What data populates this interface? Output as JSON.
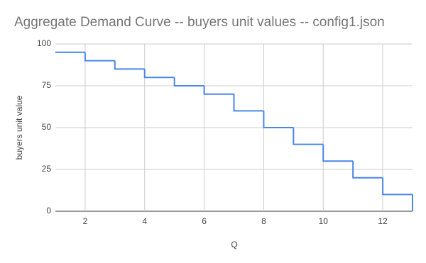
{
  "chart_data": {
    "type": "line",
    "step": "post",
    "title": "Aggregate Demand Curve -- buyers unit values -- config1.json",
    "xlabel": "Q",
    "ylabel": "buyers unit value",
    "x": [
      1,
      2,
      3,
      4,
      5,
      6,
      7,
      8,
      9,
      10,
      11,
      12,
      13
    ],
    "series": [
      {
        "name": "buyers unit value",
        "color": "#4a86e8",
        "values": [
          95,
          90,
          85,
          80,
          75,
          70,
          60,
          50,
          40,
          30,
          20,
          10,
          0
        ]
      }
    ],
    "xlim": [
      1,
      13
    ],
    "xticks": [
      2,
      4,
      6,
      8,
      10,
      12
    ],
    "ylim": [
      0,
      100
    ],
    "yticks": [
      0,
      25,
      50,
      75,
      100
    ],
    "grid": true
  }
}
